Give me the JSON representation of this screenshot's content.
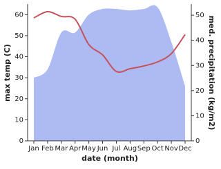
{
  "chart_data": {
    "type": "area-line",
    "x_label": "date (month)",
    "y_label": "max temp (C)",
    "y2_label": "med. precipitation (kg/m2)",
    "categories": [
      "Jan",
      "Feb",
      "Mar",
      "Apr",
      "May",
      "Jun",
      "Jul",
      "Aug",
      "Sep",
      "Oct",
      "Nov",
      "Dec"
    ],
    "ylim": [
      0,
      65
    ],
    "yticks": [
      0,
      10,
      20,
      30,
      40,
      50,
      60
    ],
    "y2lim": [
      0,
      54.4
    ],
    "y2ticks": [
      0,
      10,
      20,
      30,
      40,
      50
    ],
    "series": [
      {
        "name": "max temp",
        "color": "#aebbf3",
        "values": [
          30,
          34,
          51.5,
          51.5,
          60,
          62.7,
          62.7,
          62,
          62.7,
          63.5,
          47,
          26
        ]
      },
      {
        "name": "med. precipitation",
        "color": "#c4515b",
        "axis": "y2",
        "values": [
          48.9,
          51.4,
          49.5,
          48.4,
          38.3,
          34.2,
          27.6,
          28.7,
          29.8,
          31.4,
          34.7,
          42.3
        ]
      }
    ]
  }
}
